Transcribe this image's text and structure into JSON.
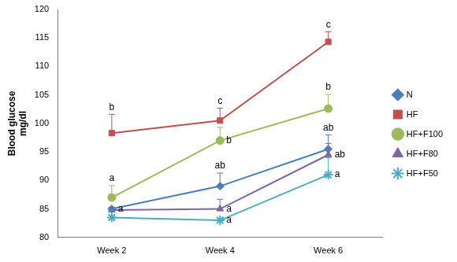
{
  "chart_data": {
    "type": "line",
    "y_label": [
      "Blood glucose",
      "mg/dl"
    ],
    "categories": [
      "Week 2",
      "Week 4",
      "Week 6"
    ],
    "ylim": [
      80,
      120
    ],
    "yticks": [
      80,
      85,
      90,
      95,
      100,
      105,
      110,
      115,
      120
    ],
    "grid": false,
    "legend": "right",
    "series": [
      {
        "name": "N",
        "color": "#4A7EBB",
        "marker": "diamond",
        "values": [
          85,
          89,
          95.5
        ],
        "errors": [
          0.3,
          2.3,
          2.5
        ],
        "letters": [
          "a",
          "ab",
          "ab"
        ]
      },
      {
        "name": "HF",
        "color": "#C0504D",
        "marker": "square",
        "values": [
          98.3,
          100.5,
          114.3
        ],
        "errors": [
          3.3,
          2.2,
          1.8
        ],
        "letters": [
          "b",
          "c",
          "c"
        ]
      },
      {
        "name": "HF+F100",
        "color": "#9BBB59",
        "marker": "circle",
        "values": [
          87,
          97,
          102.6
        ],
        "errors": [
          2.1,
          2.3,
          2.5
        ],
        "letters": [
          "a",
          "b",
          "b"
        ]
      },
      {
        "name": "HF+F80",
        "color": "#8064A2",
        "marker": "triangle",
        "values": [
          84.8,
          85,
          94.5
        ],
        "errors": [
          0.5,
          1.7,
          2
        ],
        "letters": [
          null,
          "a",
          "ab"
        ]
      },
      {
        "name": "HF+F50",
        "color": "#4BACC6",
        "marker": "star",
        "values": [
          83.5,
          83,
          91
        ],
        "errors": [
          0.3,
          0.3,
          3
        ],
        "letters": [
          null,
          "a",
          "a"
        ]
      }
    ]
  }
}
